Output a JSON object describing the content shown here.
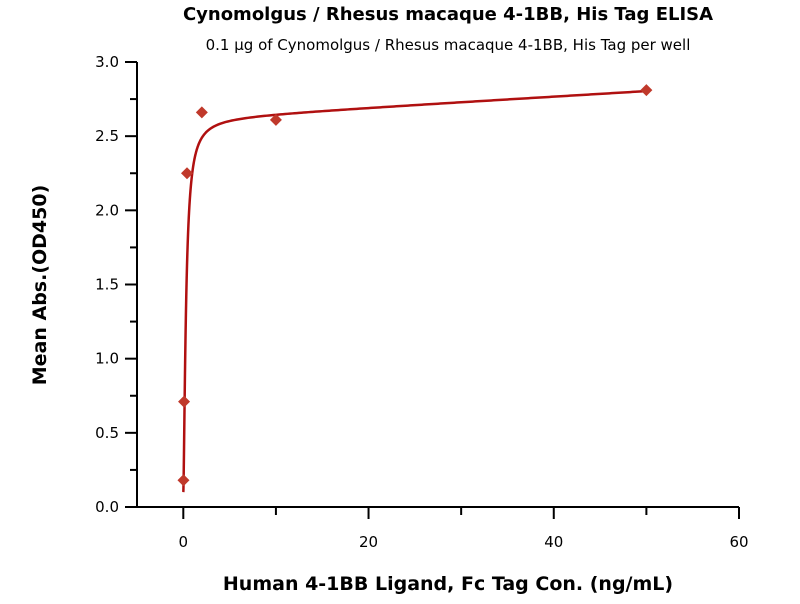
{
  "chart_data": {
    "type": "scatter",
    "title": "Cynomolgus / Rhesus macaque 4-1BB, His Tag ELISA",
    "subtitle": "0.1 µg of Cynomolgus / Rhesus macaque 4-1BB, His Tag per well",
    "xlabel": "Human 4-1BB Ligand, Fc Tag Con. (ng/mL)",
    "ylabel": "Mean Abs.(OD450)",
    "xlim": [
      -5,
      60
    ],
    "ylim": [
      0,
      3.0
    ],
    "x_ticks": [
      0,
      20,
      40,
      60
    ],
    "y_ticks": [
      "0.0",
      "0.5",
      "1.0",
      "1.5",
      "2.0",
      "2.5",
      "3.0"
    ],
    "grid": false,
    "color": "#c0392b",
    "line_color": "#b01010",
    "marker": "diamond",
    "fit_curve": true,
    "points": [
      {
        "x": 0.016,
        "y": 0.18
      },
      {
        "x": 0.08,
        "y": 0.71
      },
      {
        "x": 0.4,
        "y": 2.25
      },
      {
        "x": 2,
        "y": 2.66
      },
      {
        "x": 10,
        "y": 2.61
      },
      {
        "x": 50,
        "y": 2.81
      }
    ]
  }
}
